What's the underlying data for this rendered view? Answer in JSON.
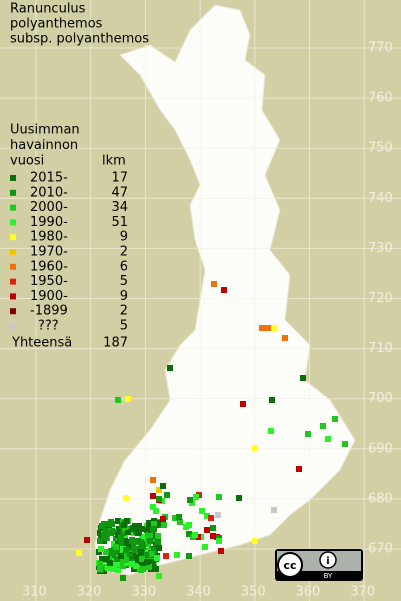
{
  "title": [
    "Ranunculus",
    "polyanthemos",
    "subsp. polyanthemos"
  ],
  "legend": {
    "header": [
      "Uusimman",
      "havainnon",
      "vuosi"
    ],
    "count_header": "lkm",
    "items": [
      {
        "label": "2015-",
        "count": "17",
        "color": "#0a6e0a"
      },
      {
        "label": "2010-",
        "count": "47",
        "color": "#119611"
      },
      {
        "label": "2000-",
        "count": "34",
        "color": "#1ec81e"
      },
      {
        "label": "1990-",
        "count": "51",
        "color": "#2cf02c"
      },
      {
        "label": "1980-",
        "count": "9",
        "color": "#ffff20"
      },
      {
        "label": "1970-",
        "count": "2",
        "color": "#f5c400"
      },
      {
        "label": "1960-",
        "count": "6",
        "color": "#f07010"
      },
      {
        "label": "1950-",
        "count": "5",
        "color": "#e02010"
      },
      {
        "label": "1900-",
        "count": "9",
        "color": "#c00000"
      },
      {
        "label": "-1899",
        "count": "2",
        "color": "#800000"
      },
      {
        "label": "???",
        "count": "5",
        "color": "#c8c8c8"
      }
    ],
    "total_label": "Yhteensä",
    "total": "187"
  },
  "y_labels": [
    "770",
    "760",
    "750",
    "740",
    "730",
    "720",
    "710",
    "700",
    "690",
    "680",
    "670"
  ],
  "x_labels": [
    "310",
    "320",
    "330",
    "340",
    "350",
    "360",
    "370"
  ],
  "license": {
    "cc": "cc",
    "by": "BY"
  }
}
